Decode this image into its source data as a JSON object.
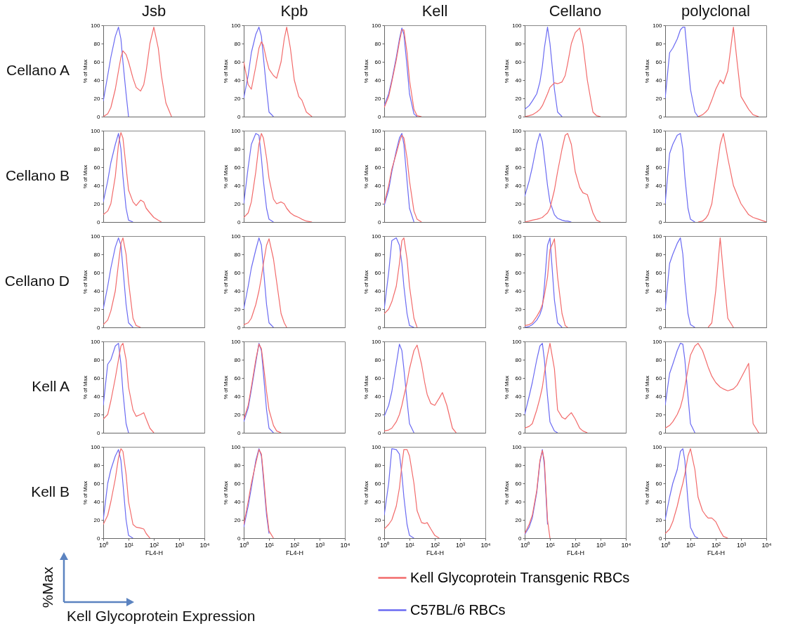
{
  "chart_data": [
    {
      "type": "line",
      "title": "Jsb",
      "annotations": [
        "Cellano A"
      ],
      "ylabel": "% of Max",
      "log": "x",
      "xlim": [
        1,
        10000
      ],
      "ylim": [
        0,
        100
      ],
      "yticks": [
        0,
        20,
        40,
        60,
        80,
        100
      ],
      "tick_labels": "y",
      "x": [
        1,
        1.5,
        2,
        3,
        4,
        5,
        6,
        8,
        10,
        15,
        20,
        30,
        40,
        50,
        70,
        100,
        150,
        200,
        300,
        500
      ],
      "series": [
        {
          "color": "#f26a6a",
          "values": [
            0,
            3,
            10,
            30,
            50,
            65,
            72,
            68,
            60,
            42,
            32,
            28,
            35,
            50,
            80,
            98,
            75,
            45,
            15,
            0
          ]
        },
        {
          "color": "#6a6af2",
          "values": [
            17,
            45,
            65,
            88,
            98,
            85,
            60,
            25,
            0,
            null,
            null,
            null,
            null,
            null,
            null,
            null,
            null,
            null,
            null,
            null
          ]
        }
      ]
    },
    {
      "type": "line",
      "title": "Kpb",
      "ylabel": "% of Max",
      "log": "x",
      "xlim": [
        1,
        10000
      ],
      "ylim": [
        0,
        100
      ],
      "yticks": [
        0,
        20,
        40,
        60,
        80,
        100
      ],
      "tick_labels": "y",
      "x": [
        1,
        1.5,
        2,
        3,
        4,
        5,
        6,
        8,
        10,
        15,
        20,
        30,
        40,
        50,
        70,
        100,
        150,
        200,
        300,
        500
      ],
      "series": [
        {
          "color": "#f26a6a",
          "values": [
            60,
            35,
            30,
            55,
            75,
            82,
            78,
            62,
            52,
            45,
            42,
            60,
            85,
            98,
            75,
            40,
            22,
            18,
            5,
            0
          ]
        },
        {
          "color": "#6a6af2",
          "values": [
            20,
            45,
            70,
            90,
            98,
            88,
            65,
            30,
            5,
            0,
            null,
            null,
            null,
            null,
            null,
            null,
            null,
            null,
            null,
            null
          ]
        }
      ]
    },
    {
      "type": "line",
      "title": "Kell",
      "ylabel": "% of Max",
      "log": "x",
      "xlim": [
        1,
        10000
      ],
      "ylim": [
        0,
        100
      ],
      "yticks": [
        0,
        20,
        40,
        60,
        80,
        100
      ],
      "tick_labels": "y",
      "x": [
        1,
        1.5,
        2,
        3,
        4,
        5,
        6,
        8,
        10,
        15,
        20,
        30
      ],
      "series": [
        {
          "color": "#f26a6a",
          "values": [
            10,
            22,
            38,
            62,
            82,
            95,
            95,
            70,
            40,
            8,
            1,
            0
          ]
        },
        {
          "color": "#6a6af2",
          "values": [
            12,
            25,
            40,
            65,
            85,
            97,
            90,
            55,
            25,
            3,
            0,
            null
          ]
        }
      ]
    },
    {
      "type": "line",
      "title": "Cellano",
      "ylabel": "% of Max",
      "log": "x",
      "xlim": [
        1,
        10000
      ],
      "ylim": [
        0,
        100
      ],
      "yticks": [
        0,
        20,
        40,
        60,
        80,
        100
      ],
      "tick_labels": "y",
      "x": [
        1,
        1.5,
        2,
        3,
        4,
        5,
        6,
        8,
        10,
        15,
        20,
        30,
        40,
        50,
        70,
        100,
        150,
        200,
        300,
        500,
        700,
        1000
      ],
      "series": [
        {
          "color": "#f26a6a",
          "values": [
            0,
            1,
            2,
            5,
            8,
            12,
            17,
            25,
            32,
            37,
            36,
            38,
            45,
            58,
            80,
            92,
            97,
            80,
            40,
            5,
            1,
            0
          ]
        },
        {
          "color": "#6a6af2",
          "values": [
            8,
            12,
            17,
            25,
            38,
            55,
            75,
            98,
            80,
            30,
            5,
            0,
            null,
            null,
            null,
            null,
            null,
            null,
            null,
            null,
            null,
            null
          ]
        }
      ]
    },
    {
      "type": "line",
      "title": "polyclonal",
      "ylabel": "% of Max",
      "log": "x",
      "xlim": [
        1,
        10000
      ],
      "ylim": [
        0,
        100
      ],
      "yticks": [
        0,
        20,
        40,
        60,
        80,
        100
      ],
      "tick_labels": "y",
      "x": [
        1,
        1.5,
        2,
        3,
        4,
        5,
        6,
        8,
        10,
        15,
        20,
        30,
        40,
        50,
        70,
        100,
        150,
        200,
        300,
        500,
        700,
        1000,
        2000,
        3000,
        5000
      ],
      "series": [
        {
          "color": "#f26a6a",
          "values": [
            null,
            null,
            null,
            null,
            null,
            null,
            null,
            null,
            null,
            null,
            0,
            2,
            5,
            8,
            18,
            30,
            40,
            36,
            50,
            98,
            60,
            22,
            8,
            2,
            0
          ]
        },
        {
          "color": "#6a6af2",
          "values": [
            20,
            70,
            75,
            85,
            95,
            98,
            98,
            60,
            30,
            5,
            0,
            null,
            null,
            null,
            null,
            null,
            null,
            null,
            null,
            null,
            null,
            null,
            null,
            null,
            null
          ]
        }
      ]
    },
    {
      "type": "line",
      "annotations": [
        "Cellano B"
      ],
      "ylabel": "% of Max",
      "log": "x",
      "xlim": [
        1,
        10000
      ],
      "ylim": [
        0,
        100
      ],
      "yticks": [
        0,
        20,
        40,
        60,
        80,
        100
      ],
      "tick_labels": "y",
      "x": [
        1,
        1.5,
        2,
        3,
        4,
        5,
        6,
        8,
        10,
        15,
        20,
        30,
        40,
        50,
        70,
        100,
        150,
        200
      ],
      "series": [
        {
          "color": "#f26a6a",
          "values": [
            8,
            12,
            20,
            50,
            85,
            98,
            92,
            60,
            35,
            22,
            18,
            24,
            22,
            15,
            10,
            5,
            2,
            0
          ]
        },
        {
          "color": "#6a6af2",
          "values": [
            22,
            45,
            65,
            85,
            97,
            80,
            50,
            15,
            2,
            0,
            null,
            null,
            null,
            null,
            null,
            null,
            null,
            null
          ]
        }
      ]
    },
    {
      "type": "line",
      "ylabel": "% of Max",
      "log": "x",
      "xlim": [
        1,
        10000
      ],
      "ylim": [
        0,
        100
      ],
      "yticks": [
        0,
        20,
        40,
        60,
        80,
        100
      ],
      "tick_labels": "y",
      "x": [
        1,
        1.5,
        2,
        3,
        4,
        5,
        6,
        8,
        10,
        15,
        20,
        30,
        40,
        50,
        70,
        100,
        150,
        200,
        300,
        500
      ],
      "series": [
        {
          "color": "#f26a6a",
          "values": [
            5,
            10,
            22,
            55,
            85,
            97,
            92,
            70,
            48,
            25,
            20,
            22,
            20,
            15,
            10,
            7,
            5,
            3,
            1,
            0
          ]
        },
        {
          "color": "#6a6af2",
          "values": [
            20,
            60,
            85,
            97,
            95,
            70,
            45,
            15,
            3,
            0,
            null,
            null,
            null,
            null,
            null,
            null,
            null,
            null,
            null,
            null
          ]
        }
      ]
    },
    {
      "type": "line",
      "ylabel": "% of Max",
      "log": "x",
      "xlim": [
        1,
        10000
      ],
      "ylim": [
        0,
        100
      ],
      "yticks": [
        0,
        20,
        40,
        60,
        80,
        100
      ],
      "tick_labels": "y",
      "x": [
        1,
        1.5,
        2,
        3,
        4,
        5,
        6,
        8,
        10,
        15,
        20,
        30
      ],
      "series": [
        {
          "color": "#f26a6a",
          "values": [
            20,
            40,
            58,
            75,
            88,
            95,
            92,
            70,
            45,
            12,
            3,
            0
          ]
        },
        {
          "color": "#6a6af2",
          "values": [
            18,
            35,
            55,
            78,
            92,
            97,
            85,
            45,
            15,
            0,
            null,
            null
          ]
        }
      ]
    },
    {
      "type": "line",
      "ylabel": "% of Max",
      "log": "x",
      "xlim": [
        1,
        10000
      ],
      "ylim": [
        0,
        100
      ],
      "yticks": [
        0,
        20,
        40,
        60,
        80,
        100
      ],
      "tick_labels": "y",
      "x": [
        1,
        1.5,
        2,
        3,
        4,
        5,
        6,
        8,
        10,
        15,
        20,
        30,
        40,
        50,
        70,
        100,
        150,
        200,
        300,
        500,
        700,
        1000
      ],
      "series": [
        {
          "color": "#f26a6a",
          "values": [
            0,
            1,
            2,
            3,
            4,
            5,
            7,
            10,
            15,
            35,
            55,
            80,
            95,
            97,
            85,
            55,
            38,
            32,
            30,
            10,
            2,
            0
          ]
        },
        {
          "color": "#6a6af2",
          "values": [
            28,
            45,
            60,
            85,
            97,
            88,
            70,
            40,
            22,
            8,
            4,
            2,
            1,
            1,
            0,
            null,
            null,
            null,
            null,
            null,
            null,
            null
          ]
        }
      ]
    },
    {
      "type": "line",
      "ylabel": "% of Max",
      "log": "x",
      "xlim": [
        1,
        10000
      ],
      "ylim": [
        0,
        100
      ],
      "yticks": [
        0,
        20,
        40,
        60,
        80,
        100
      ],
      "tick_labels": "y",
      "x": [
        1,
        1.5,
        2,
        3,
        4,
        5,
        6,
        8,
        10,
        15,
        20,
        30,
        40,
        50,
        70,
        100,
        150,
        200,
        300,
        500,
        700,
        1000,
        2000,
        3000,
        5000,
        10000
      ],
      "series": [
        {
          "color": "#f26a6a",
          "values": [
            null,
            null,
            null,
            null,
            null,
            null,
            null,
            null,
            null,
            null,
            0,
            1,
            4,
            8,
            20,
            50,
            85,
            97,
            70,
            40,
            30,
            20,
            8,
            5,
            3,
            0
          ]
        },
        {
          "color": "#6a6af2",
          "values": [
            20,
            75,
            85,
            95,
            97,
            80,
            50,
            15,
            3,
            0,
            null,
            null,
            null,
            null,
            null,
            null,
            null,
            null,
            null,
            null,
            null,
            null,
            null,
            null,
            null,
            null
          ]
        }
      ]
    },
    {
      "type": "line",
      "annotations": [
        "Cellano D"
      ],
      "ylabel": "% of Max",
      "log": "x",
      "xlim": [
        1,
        10000
      ],
      "ylim": [
        0,
        100
      ],
      "yticks": [
        0,
        20,
        40,
        60,
        80,
        100
      ],
      "tick_labels": "y",
      "x": [
        1,
        1.5,
        2,
        3,
        4,
        5,
        6,
        8,
        10,
        15,
        20,
        30
      ],
      "series": [
        {
          "color": "#f26a6a",
          "values": [
            3,
            8,
            18,
            40,
            70,
            92,
            98,
            80,
            50,
            10,
            2,
            0
          ]
        },
        {
          "color": "#6a6af2",
          "values": [
            20,
            45,
            65,
            88,
            98,
            90,
            65,
            25,
            5,
            0,
            null,
            null
          ]
        }
      ]
    },
    {
      "type": "line",
      "ylabel": "% of Max",
      "log": "x",
      "xlim": [
        1,
        10000
      ],
      "ylim": [
        0,
        100
      ],
      "yticks": [
        0,
        20,
        40,
        60,
        80,
        100
      ],
      "tick_labels": "y",
      "x": [
        1,
        1.5,
        2,
        3,
        4,
        5,
        6,
        8,
        10,
        15,
        20,
        30,
        40,
        50
      ],
      "series": [
        {
          "color": "#f26a6a",
          "values": [
            3,
            5,
            10,
            25,
            40,
            55,
            70,
            90,
            97,
            75,
            50,
            15,
            5,
            0
          ]
        },
        {
          "color": "#6a6af2",
          "values": [
            20,
            45,
            65,
            85,
            98,
            90,
            65,
            25,
            5,
            0,
            null,
            null,
            null,
            null
          ]
        }
      ]
    },
    {
      "type": "line",
      "ylabel": "% of Max",
      "log": "x",
      "xlim": [
        1,
        10000
      ],
      "ylim": [
        0,
        100
      ],
      "yticks": [
        0,
        20,
        40,
        60,
        80,
        100
      ],
      "tick_labels": "y",
      "x": [
        1,
        1.5,
        2,
        3,
        4,
        5,
        6,
        8,
        10,
        15,
        20
      ],
      "series": [
        {
          "color": "#f26a6a",
          "values": [
            15,
            20,
            28,
            45,
            70,
            95,
            98,
            75,
            45,
            10,
            0
          ]
        },
        {
          "color": "#6a6af2",
          "values": [
            20,
            60,
            95,
            98,
            90,
            70,
            45,
            15,
            2,
            0,
            null
          ]
        }
      ]
    },
    {
      "type": "line",
      "ylabel": "% of Max",
      "log": "x",
      "xlim": [
        1,
        10000
      ],
      "ylim": [
        0,
        100
      ],
      "yticks": [
        0,
        20,
        40,
        60,
        80,
        100
      ],
      "tick_labels": "y",
      "x": [
        1,
        1.5,
        2,
        3,
        4,
        5,
        6,
        8,
        10,
        15,
        20,
        30,
        40,
        50
      ],
      "series": [
        {
          "color": "#f26a6a",
          "values": [
            2,
            3,
            5,
            12,
            18,
            25,
            35,
            55,
            85,
            97,
            55,
            15,
            2,
            0
          ]
        },
        {
          "color": "#6a6af2",
          "values": [
            0,
            1,
            3,
            8,
            14,
            22,
            45,
            90,
            98,
            30,
            5,
            0,
            null,
            null
          ]
        }
      ]
    },
    {
      "type": "line",
      "ylabel": "% of Max",
      "log": "x",
      "xlim": [
        1,
        10000
      ],
      "ylim": [
        0,
        100
      ],
      "yticks": [
        0,
        20,
        40,
        60,
        80,
        100
      ],
      "tick_labels": "y",
      "x": [
        1,
        1.5,
        2,
        3,
        4,
        5,
        6,
        8,
        10,
        15,
        20,
        30,
        40,
        50,
        70,
        100,
        150,
        200,
        300,
        500
      ],
      "series": [
        {
          "color": "#f26a6a",
          "values": [
            null,
            null,
            null,
            null,
            null,
            null,
            null,
            null,
            null,
            null,
            null,
            null,
            null,
            0,
            5,
            40,
            98,
            60,
            10,
            0
          ]
        },
        {
          "color": "#6a6af2",
          "values": [
            20,
            70,
            80,
            92,
            98,
            80,
            50,
            15,
            3,
            0,
            null,
            null,
            null,
            null,
            null,
            null,
            null,
            null,
            null,
            null
          ]
        }
      ]
    },
    {
      "type": "line",
      "annotations": [
        "Kell A"
      ],
      "ylabel": "% of Max",
      "log": "x",
      "xlim": [
        1,
        10000
      ],
      "ylim": [
        0,
        100
      ],
      "yticks": [
        0,
        20,
        40,
        60,
        80,
        100
      ],
      "tick_labels": "y",
      "x": [
        1,
        1.5,
        2,
        3,
        4,
        5,
        6,
        8,
        10,
        15,
        20,
        30,
        40,
        50,
        70,
        100
      ],
      "series": [
        {
          "color": "#f26a6a",
          "values": [
            15,
            20,
            35,
            60,
            80,
            95,
            98,
            80,
            50,
            25,
            18,
            20,
            22,
            15,
            5,
            0
          ]
        },
        {
          "color": "#6a6af2",
          "values": [
            30,
            75,
            80,
            95,
            98,
            75,
            45,
            10,
            0,
            null,
            null,
            null,
            null,
            null,
            null,
            null
          ]
        }
      ]
    },
    {
      "type": "line",
      "ylabel": "% of Max",
      "log": "x",
      "xlim": [
        1,
        10000
      ],
      "ylim": [
        0,
        100
      ],
      "yticks": [
        0,
        20,
        40,
        60,
        80,
        100
      ],
      "tick_labels": "y",
      "x": [
        1,
        1.5,
        2,
        3,
        4,
        5,
        6,
        8,
        10,
        15,
        20,
        30
      ],
      "series": [
        {
          "color": "#f26a6a",
          "values": [
            15,
            30,
            50,
            80,
            97,
            92,
            75,
            45,
            25,
            8,
            2,
            0
          ]
        },
        {
          "color": "#6a6af2",
          "values": [
            12,
            27,
            47,
            77,
            98,
            90,
            65,
            25,
            5,
            0,
            null,
            null
          ]
        }
      ]
    },
    {
      "type": "line",
      "ylabel": "% of Max",
      "log": "x",
      "xlim": [
        1,
        10000
      ],
      "ylim": [
        0,
        100
      ],
      "yticks": [
        0,
        20,
        40,
        60,
        80,
        100
      ],
      "tick_labels": "y",
      "x": [
        1,
        1.5,
        2,
        3,
        4,
        5,
        6,
        8,
        10,
        15,
        20,
        30,
        40,
        50,
        70,
        100,
        150,
        200,
        300,
        500,
        700
      ],
      "series": [
        {
          "color": "#f26a6a",
          "values": [
            2,
            3,
            5,
            12,
            20,
            30,
            40,
            55,
            70,
            90,
            96,
            75,
            55,
            42,
            32,
            30,
            38,
            44,
            30,
            5,
            0
          ]
        },
        {
          "color": "#6a6af2",
          "values": [
            18,
            30,
            45,
            75,
            97,
            90,
            70,
            35,
            10,
            0,
            null,
            null,
            null,
            null,
            null,
            null,
            null,
            null,
            null,
            null,
            null
          ]
        }
      ]
    },
    {
      "type": "line",
      "ylabel": "% of Max",
      "log": "x",
      "xlim": [
        1,
        10000
      ],
      "ylim": [
        0,
        100
      ],
      "yticks": [
        0,
        20,
        40,
        60,
        80,
        100
      ],
      "tick_labels": "y",
      "x": [
        1,
        1.5,
        2,
        3,
        4,
        5,
        6,
        8,
        10,
        15,
        20,
        30,
        40,
        50,
        70,
        100,
        150,
        200,
        300
      ],
      "series": [
        {
          "color": "#f26a6a",
          "values": [
            5,
            7,
            10,
            25,
            38,
            50,
            65,
            85,
            98,
            70,
            25,
            17,
            15,
            18,
            22,
            15,
            5,
            2,
            0
          ]
        },
        {
          "color": "#6a6af2",
          "values": [
            20,
            40,
            55,
            80,
            95,
            98,
            80,
            40,
            12,
            2,
            0,
            null,
            null,
            null,
            null,
            null,
            null,
            null,
            null
          ]
        }
      ]
    },
    {
      "type": "line",
      "ylabel": "% of Max",
      "log": "x",
      "xlim": [
        1,
        10000
      ],
      "ylim": [
        0,
        100
      ],
      "yticks": [
        0,
        20,
        40,
        60,
        80,
        100
      ],
      "tick_labels": "y",
      "x": [
        1,
        1.5,
        2,
        3,
        4,
        5,
        6,
        8,
        10,
        15,
        20,
        30,
        40,
        50,
        70,
        100,
        150,
        200,
        300,
        500,
        700,
        1000,
        2000,
        3000,
        5000
      ],
      "series": [
        {
          "color": "#f26a6a",
          "values": [
            5,
            8,
            12,
            20,
            28,
            38,
            50,
            70,
            85,
            95,
            98,
            90,
            80,
            72,
            62,
            55,
            50,
            48,
            46,
            48,
            52,
            60,
            76,
            10,
            0
          ]
        },
        {
          "color": "#6a6af2",
          "values": [
            30,
            65,
            75,
            90,
            98,
            97,
            80,
            40,
            10,
            0,
            null,
            null,
            null,
            null,
            null,
            null,
            null,
            null,
            null,
            null,
            null,
            null,
            null,
            null,
            null
          ]
        }
      ]
    },
    {
      "type": "line",
      "annotations": [
        "Kell B",
        "%Max",
        "Kell Glycoprotein Expression"
      ],
      "xlabel": "FL4-H",
      "ylabel": "% of Max",
      "log": "x",
      "xlim": [
        1,
        10000
      ],
      "xticks": [
        {
          "value": 1,
          "label": "10⁰"
        },
        {
          "value": 10,
          "label": "10¹"
        },
        {
          "value": 100,
          "label": "10²"
        },
        {
          "value": 1000,
          "label": "10³"
        },
        {
          "value": 10000,
          "label": "10⁴"
        }
      ],
      "ylim": [
        0,
        100
      ],
      "yticks": [
        0,
        20,
        40,
        60,
        80,
        100
      ],
      "x": [
        1,
        1.5,
        2,
        3,
        4,
        5,
        6,
        8,
        10,
        15,
        20,
        30,
        40,
        50,
        70
      ],
      "series": [
        {
          "color": "#f26a6a",
          "values": [
            15,
            25,
            40,
            65,
            88,
            98,
            95,
            70,
            40,
            15,
            12,
            11,
            10,
            5,
            0
          ]
        },
        {
          "color": "#6a6af2",
          "values": [
            20,
            60,
            75,
            90,
            97,
            85,
            60,
            20,
            3,
            0,
            null,
            null,
            null,
            null,
            null
          ]
        }
      ]
    },
    {
      "type": "line",
      "xlabel": "FL4-H",
      "ylabel": "% of Max",
      "log": "x",
      "xlim": [
        1,
        10000
      ],
      "xticks": [
        {
          "value": 1,
          "label": "10⁰"
        },
        {
          "value": 10,
          "label": "10¹"
        },
        {
          "value": 100,
          "label": "10²"
        },
        {
          "value": 1000,
          "label": "10³"
        },
        {
          "value": 10000,
          "label": "10⁴"
        }
      ],
      "ylim": [
        0,
        100
      ],
      "yticks": [
        0,
        20,
        40,
        60,
        80,
        100
      ],
      "x": [
        1,
        1.5,
        2,
        3,
        4,
        5,
        6,
        8,
        10,
        15
      ],
      "series": [
        {
          "color": "#f26a6a",
          "values": [
            15,
            40,
            60,
            82,
            97,
            92,
            70,
            30,
            8,
            0
          ]
        },
        {
          "color": "#6a6af2",
          "values": [
            12,
            35,
            55,
            85,
            98,
            90,
            65,
            25,
            5,
            null
          ]
        }
      ]
    },
    {
      "type": "line",
      "xlabel": "FL4-H",
      "ylabel": "% of Max",
      "log": "x",
      "xlim": [
        1,
        10000
      ],
      "xticks": [
        {
          "value": 1,
          "label": "10⁰"
        },
        {
          "value": 10,
          "label": "10¹"
        },
        {
          "value": 100,
          "label": "10²"
        },
        {
          "value": 1000,
          "label": "10³"
        },
        {
          "value": 10000,
          "label": "10⁴"
        }
      ],
      "ylim": [
        0,
        100
      ],
      "yticks": [
        0,
        20,
        40,
        60,
        80,
        100
      ],
      "x": [
        1,
        1.5,
        2,
        3,
        4,
        5,
        6,
        8,
        10,
        15,
        20,
        30,
        40,
        50,
        70,
        100,
        150
      ],
      "series": [
        {
          "color": "#f26a6a",
          "values": [
            10,
            15,
            20,
            35,
            55,
            80,
            97,
            97,
            90,
            60,
            30,
            17,
            16,
            17,
            10,
            3,
            0
          ]
        },
        {
          "color": "#6a6af2",
          "values": [
            25,
            60,
            98,
            97,
            92,
            70,
            45,
            15,
            3,
            0,
            null,
            null,
            null,
            null,
            null,
            null,
            null
          ]
        }
      ]
    },
    {
      "type": "line",
      "xlabel": "FL4-H",
      "ylabel": "% of Max",
      "log": "x",
      "xlim": [
        1,
        10000
      ],
      "xticks": [
        {
          "value": 1,
          "label": "10⁰"
        },
        {
          "value": 10,
          "label": "10¹"
        },
        {
          "value": 100,
          "label": "10²"
        },
        {
          "value": 1000,
          "label": "10³"
        },
        {
          "value": 10000,
          "label": "10⁴"
        }
      ],
      "ylim": [
        0,
        100
      ],
      "yticks": [
        0,
        20,
        40,
        60,
        80,
        100
      ],
      "x": [
        1,
        1.5,
        2,
        3,
        4,
        5,
        6,
        8,
        10
      ],
      "series": [
        {
          "color": "#f26a6a",
          "values": [
            5,
            15,
            25,
            52,
            85,
            96,
            85,
            20,
            0
          ]
        },
        {
          "color": "#6a6af2",
          "values": [
            4,
            12,
            22,
            50,
            83,
            97,
            80,
            15,
            null
          ]
        }
      ]
    },
    {
      "type": "line",
      "xlabel": "FL4-H",
      "ylabel": "% of Max",
      "log": "x",
      "legend": "bottom",
      "xlim": [
        1,
        10000
      ],
      "xticks": [
        {
          "value": 1,
          "label": "10⁰"
        },
        {
          "value": 10,
          "label": "10¹"
        },
        {
          "value": 100,
          "label": "10²"
        },
        {
          "value": 1000,
          "label": "10³"
        },
        {
          "value": 10000,
          "label": "10⁴"
        }
      ],
      "ylim": [
        0,
        100
      ],
      "yticks": [
        0,
        20,
        40,
        60,
        80,
        100
      ],
      "x": [
        1,
        1.5,
        2,
        3,
        4,
        5,
        6,
        8,
        10,
        15,
        20,
        30,
        40,
        50,
        70,
        100,
        150,
        200,
        300
      ],
      "series": [
        {
          "name": "Kell Glycoprotein Transgenic RBCs",
          "color": "#f26a6a",
          "values": [
            5,
            10,
            18,
            35,
            50,
            60,
            70,
            90,
            98,
            75,
            45,
            30,
            25,
            22,
            22,
            18,
            8,
            2,
            0
          ]
        },
        {
          "name": "C57BL/6 RBCs",
          "color": "#6a6af2",
          "values": [
            20,
            45,
            60,
            75,
            95,
            98,
            85,
            40,
            12,
            2,
            0,
            null,
            null,
            null,
            null,
            null,
            null,
            null,
            null
          ]
        }
      ]
    }
  ]
}
